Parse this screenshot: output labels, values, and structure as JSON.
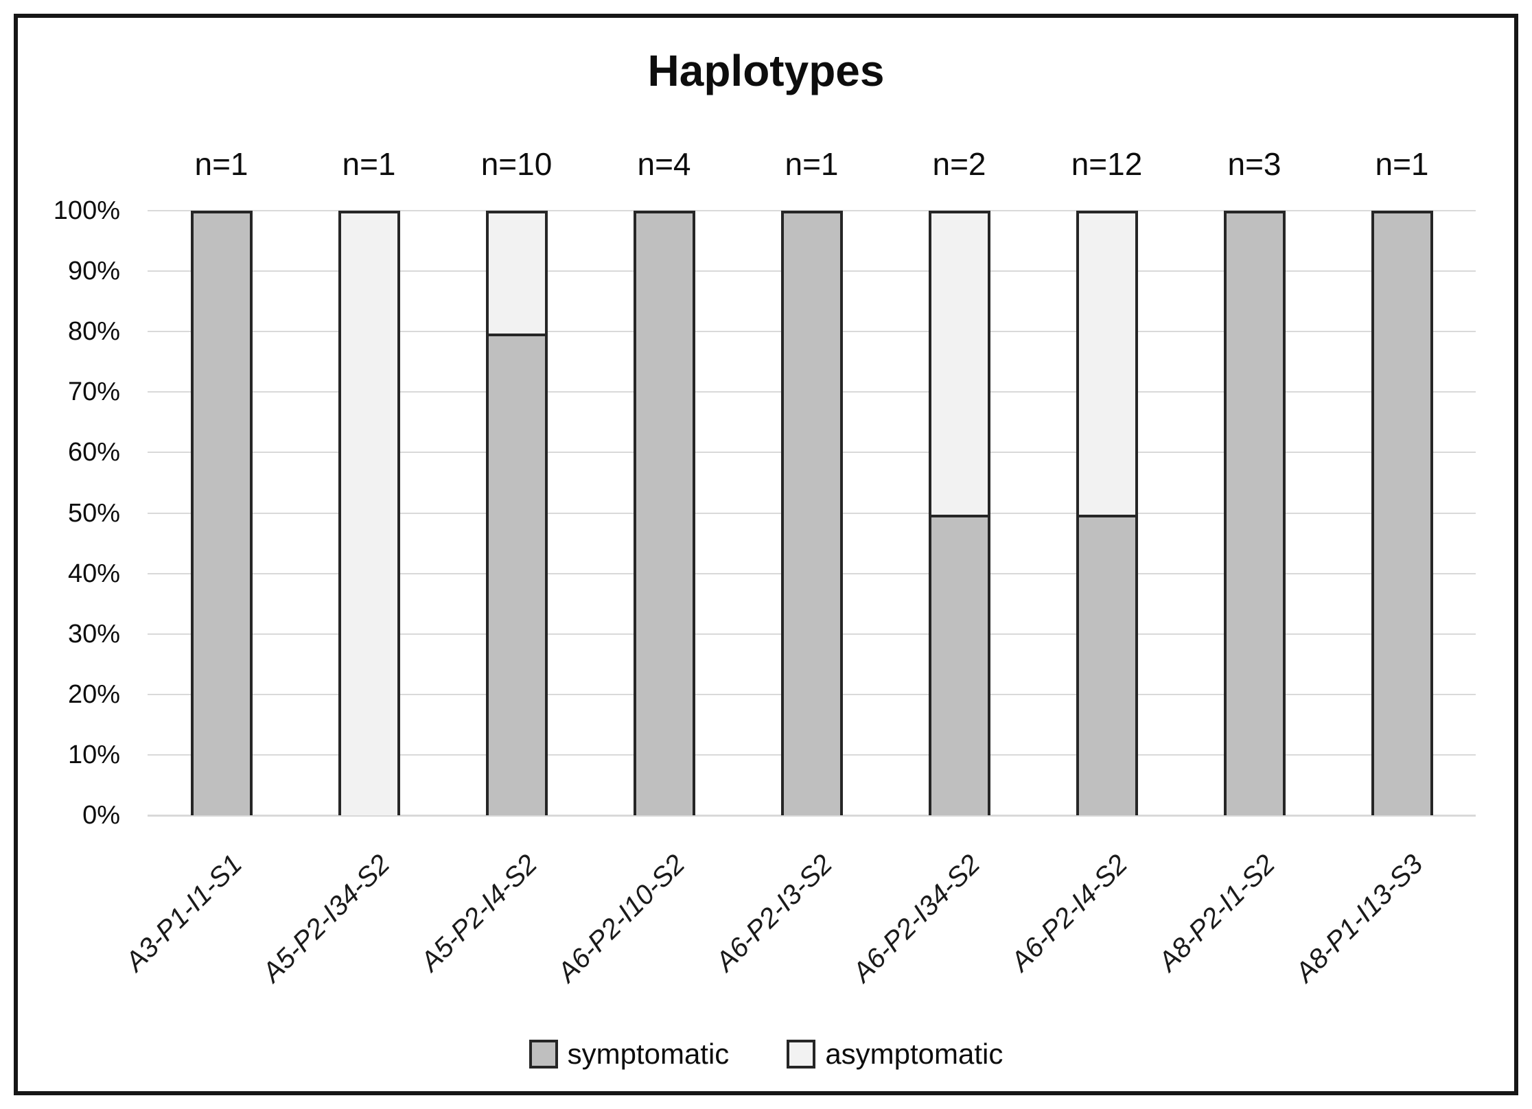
{
  "chart_data": {
    "type": "bar",
    "stacked": true,
    "title": "Haplotypes",
    "categories": [
      "A3-P1-I1-S1",
      "A5-P2-I34-S2",
      "A5-P2-I4-S2",
      "A6-P2-I10-S2",
      "A6-P2-I3-S2",
      "A6-P2-I34-S2",
      "A6-P2-I4-S2",
      "A8-P2-I1-S2",
      "A8-P1-I13-S3"
    ],
    "n_labels": [
      "n=1",
      "n=1",
      "n=10",
      "n=4",
      "n=1",
      "n=2",
      "n=12",
      "n=3",
      "n=1"
    ],
    "series": [
      {
        "name": "symptomatic",
        "color": "#bfbfbf",
        "values": [
          100,
          0,
          80,
          100,
          100,
          50,
          50,
          100,
          100
        ]
      },
      {
        "name": "asymptomatic",
        "color": "#f2f2f2",
        "values": [
          0,
          100,
          20,
          0,
          0,
          50,
          50,
          0,
          0
        ]
      }
    ],
    "y_ticks": [
      "100%",
      "90%",
      "80%",
      "70%",
      "60%",
      "50%",
      "40%",
      "30%",
      "20%",
      "10%",
      "0%"
    ],
    "ylim": [
      0,
      100
    ],
    "ylabel": "",
    "xlabel": "",
    "grid": true,
    "legend_position": "bottom",
    "colors": {
      "bar_border": "#262626",
      "gridline": "#d9d9d9",
      "frame_border": "#161616",
      "text": "#0d0d0d"
    }
  }
}
